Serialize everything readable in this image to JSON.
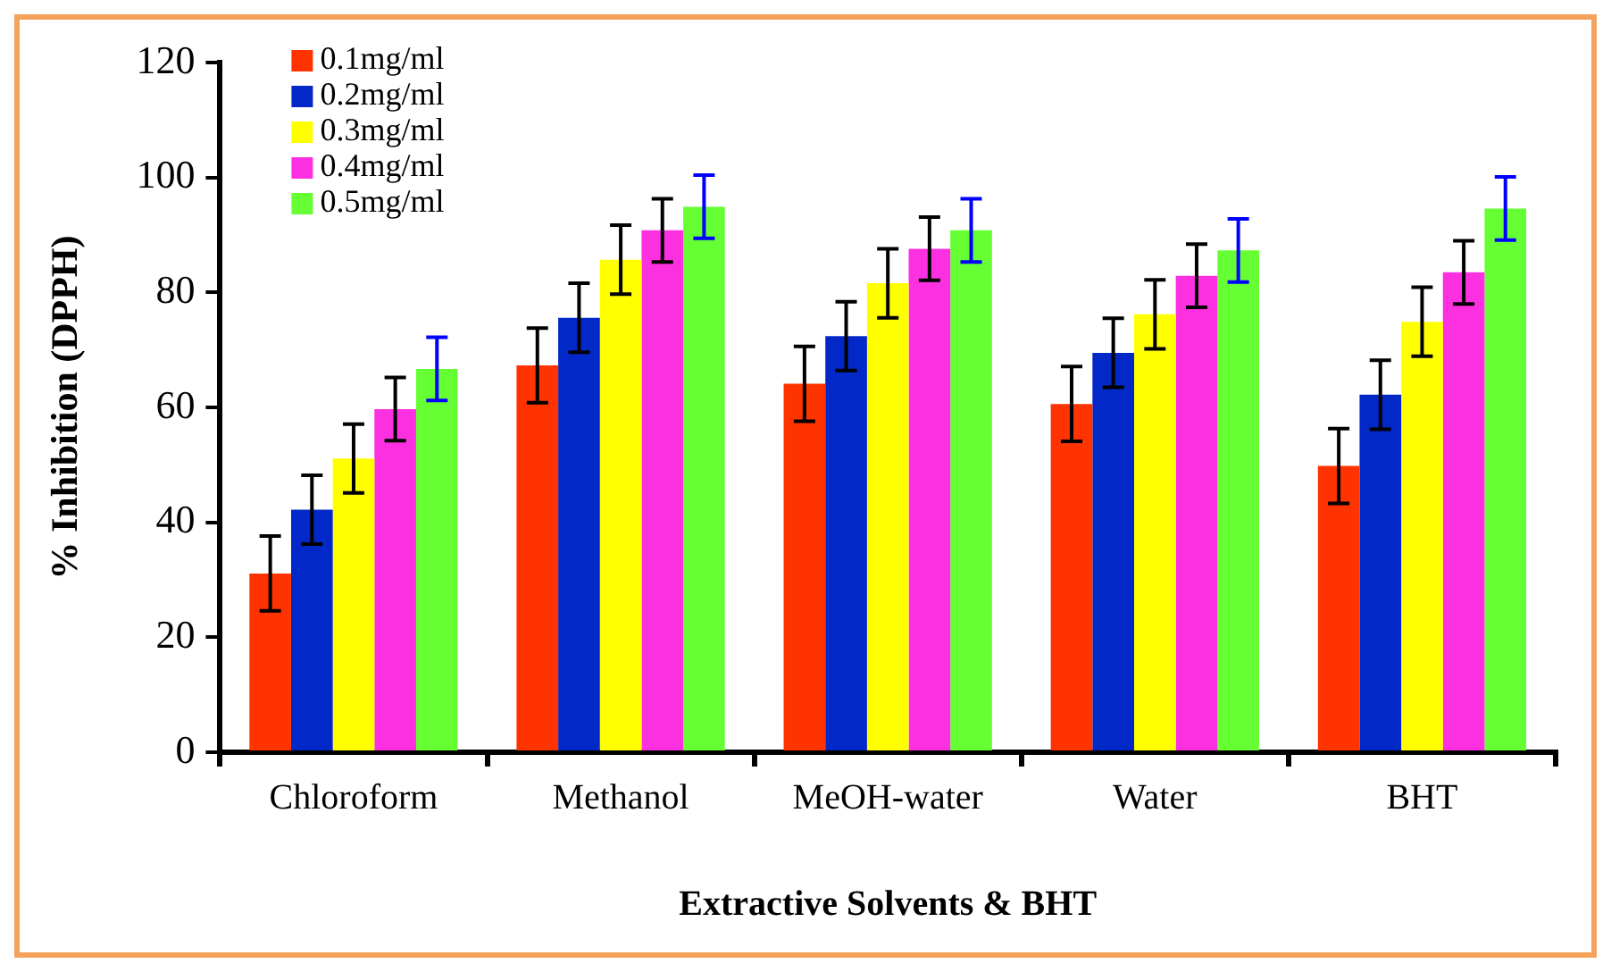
{
  "chart_data": {
    "type": "bar",
    "xlabel": "Extractive Solvents & BHT",
    "ylabel": "% Inhibition (DPPH)",
    "categories": [
      "Chloroform",
      "Methanol",
      "MeOH-water",
      "Water",
      "BHT"
    ],
    "series": [
      {
        "name": "0.1mg/ml",
        "color": "#ff3300",
        "values": [
          31.1,
          67.3,
          64.1,
          60.6,
          49.8
        ],
        "errors": [
          6.5,
          6.5,
          6.5,
          6.5,
          6.5
        ]
      },
      {
        "name": "0.2mg/ml",
        "color": "#0328c8",
        "values": [
          42.2,
          75.6,
          72.4,
          69.5,
          62.2
        ],
        "errors": [
          6,
          6,
          6,
          6,
          6
        ]
      },
      {
        "name": "0.3mg/ml",
        "color": "#ffff00",
        "values": [
          51.1,
          85.7,
          81.6,
          76.2,
          74.9
        ],
        "errors": [
          6,
          6,
          6,
          6,
          6
        ]
      },
      {
        "name": "0.4mg/ml",
        "color": "#fc30e0",
        "values": [
          59.7,
          90.8,
          87.6,
          82.9,
          83.5
        ],
        "errors": [
          5.5,
          5.5,
          5.5,
          5.5,
          5.5
        ]
      },
      {
        "name": "0.5mg/ml",
        "color": "#66ff33",
        "values": [
          66.7,
          94.9,
          90.8,
          87.3,
          94.6
        ],
        "errors": [
          5.5,
          5.5,
          5.5,
          5.5,
          5.5
        ]
      }
    ],
    "ylim": [
      0,
      120
    ],
    "yticks": [
      0,
      20,
      40,
      60,
      80,
      100,
      120
    ],
    "grid": false,
    "legend": "top left"
  }
}
